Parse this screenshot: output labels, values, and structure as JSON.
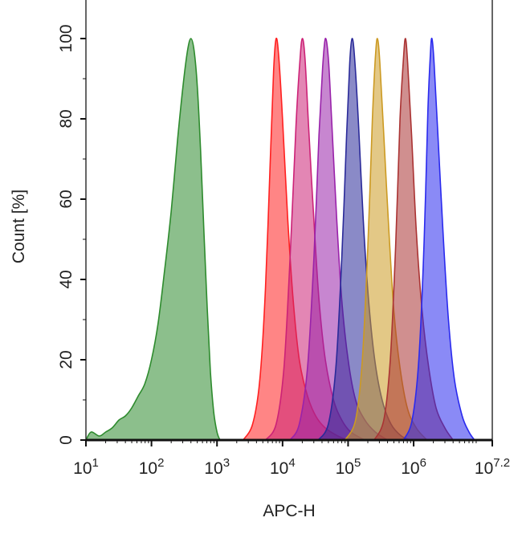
{
  "chart_data": {
    "type": "area",
    "title": "",
    "xlabel": "APC-H",
    "ylabel": "Count  [%]",
    "x_scale": "log10",
    "xlim": [
      10,
      15848932
    ],
    "ylim": [
      0,
      108
    ],
    "grid": false,
    "legend": "none",
    "x_ticks": [
      {
        "base": "10",
        "exp": "1"
      },
      {
        "base": "10",
        "exp": "2"
      },
      {
        "base": "10",
        "exp": "3"
      },
      {
        "base": "10",
        "exp": "4"
      },
      {
        "base": "10",
        "exp": "5"
      },
      {
        "base": "10",
        "exp": "6"
      },
      {
        "base": "10",
        "exp": "7.2"
      }
    ],
    "y_ticks": [
      "0",
      "20",
      "40",
      "60",
      "80",
      "100"
    ],
    "series": [
      {
        "color": "#2e8b2e",
        "peak_x": 400,
        "points": [
          [
            10,
            0
          ],
          [
            12,
            2
          ],
          [
            16,
            1
          ],
          [
            20,
            2
          ],
          [
            25,
            3
          ],
          [
            32,
            5
          ],
          [
            40,
            6
          ],
          [
            50,
            8
          ],
          [
            63,
            11
          ],
          [
            79,
            14
          ],
          [
            100,
            20
          ],
          [
            126,
            29
          ],
          [
            158,
            42
          ],
          [
            200,
            57
          ],
          [
            251,
            75
          ],
          [
            302,
            88
          ],
          [
            355,
            97
          ],
          [
            400,
            100
          ],
          [
            447,
            97
          ],
          [
            501,
            88
          ],
          [
            562,
            72
          ],
          [
            631,
            52
          ],
          [
            708,
            33
          ],
          [
            794,
            17
          ],
          [
            891,
            7
          ],
          [
            1000,
            2
          ],
          [
            1122,
            0
          ],
          [
            1259,
            0
          ]
        ]
      },
      {
        "color": "#ff2020",
        "peak_x": 8000,
        "points": [
          [
            2500,
            0
          ],
          [
            3500,
            4
          ],
          [
            4500,
            15
          ],
          [
            5500,
            38
          ],
          [
            6500,
            70
          ],
          [
            7300,
            92
          ],
          [
            8000,
            100
          ],
          [
            8800,
            95
          ],
          [
            10000,
            80
          ],
          [
            12000,
            55
          ],
          [
            14500,
            35
          ],
          [
            18000,
            20
          ],
          [
            24000,
            11
          ],
          [
            32000,
            6
          ],
          [
            45000,
            3
          ],
          [
            70000,
            1
          ],
          [
            100000,
            0
          ]
        ]
      },
      {
        "color": "#cc2277",
        "peak_x": 20000,
        "points": [
          [
            5500,
            0
          ],
          [
            8000,
            4
          ],
          [
            10500,
            18
          ],
          [
            13000,
            45
          ],
          [
            16000,
            78
          ],
          [
            18300,
            94
          ],
          [
            20000,
            100
          ],
          [
            22000,
            95
          ],
          [
            25000,
            78
          ],
          [
            30000,
            55
          ],
          [
            36000,
            35
          ],
          [
            45000,
            20
          ],
          [
            60000,
            10
          ],
          [
            80000,
            5
          ],
          [
            110000,
            2
          ],
          [
            180000,
            0
          ]
        ]
      },
      {
        "color": "#9922aa",
        "peak_x": 45000,
        "points": [
          [
            13000,
            0
          ],
          [
            18000,
            4
          ],
          [
            24000,
            18
          ],
          [
            30000,
            45
          ],
          [
            36000,
            76
          ],
          [
            41000,
            93
          ],
          [
            45000,
            100
          ],
          [
            50000,
            95
          ],
          [
            56000,
            80
          ],
          [
            67000,
            55
          ],
          [
            80000,
            35
          ],
          [
            100000,
            20
          ],
          [
            130000,
            10
          ],
          [
            180000,
            5
          ],
          [
            260000,
            2
          ],
          [
            400000,
            0
          ]
        ]
      },
      {
        "color": "#2a2a99",
        "peak_x": 115000,
        "points": [
          [
            35000,
            0
          ],
          [
            50000,
            4
          ],
          [
            65000,
            18
          ],
          [
            80000,
            45
          ],
          [
            95000,
            76
          ],
          [
            106000,
            94
          ],
          [
            115000,
            100
          ],
          [
            126000,
            95
          ],
          [
            145000,
            78
          ],
          [
            170000,
            55
          ],
          [
            205000,
            35
          ],
          [
            255000,
            20
          ],
          [
            330000,
            10
          ],
          [
            450000,
            4
          ],
          [
            650000,
            1
          ],
          [
            900000,
            0
          ]
        ]
      },
      {
        "color": "#cc9a22",
        "peak_x": 280000,
        "points": [
          [
            90000,
            0
          ],
          [
            130000,
            5
          ],
          [
            165000,
            20
          ],
          [
            200000,
            48
          ],
          [
            235000,
            80
          ],
          [
            260000,
            95
          ],
          [
            280000,
            100
          ],
          [
            305000,
            94
          ],
          [
            350000,
            76
          ],
          [
            420000,
            52
          ],
          [
            500000,
            32
          ],
          [
            620000,
            18
          ],
          [
            800000,
            8
          ],
          [
            1100000,
            3
          ],
          [
            1600000,
            0
          ]
        ]
      },
      {
        "color": "#aa3333",
        "peak_x": 750000,
        "points": [
          [
            250000,
            0
          ],
          [
            350000,
            5
          ],
          [
            440000,
            20
          ],
          [
            530000,
            48
          ],
          [
            620000,
            80
          ],
          [
            700000,
            95
          ],
          [
            750000,
            100
          ],
          [
            810000,
            94
          ],
          [
            930000,
            76
          ],
          [
            1100000,
            52
          ],
          [
            1350000,
            32
          ],
          [
            1700000,
            18
          ],
          [
            2200000,
            8
          ],
          [
            3000000,
            3
          ],
          [
            4000000,
            0
          ]
        ]
      },
      {
        "color": "#2a2aee",
        "peak_x": 1900000,
        "points": [
          [
            700000,
            0
          ],
          [
            950000,
            5
          ],
          [
            1200000,
            20
          ],
          [
            1450000,
            50
          ],
          [
            1650000,
            82
          ],
          [
            1800000,
            96
          ],
          [
            1900000,
            100
          ],
          [
            2050000,
            94
          ],
          [
            2350000,
            76
          ],
          [
            2800000,
            52
          ],
          [
            3400000,
            30
          ],
          [
            4200000,
            15
          ],
          [
            5500000,
            6
          ],
          [
            7000000,
            2
          ],
          [
            8500000,
            0
          ]
        ]
      }
    ]
  }
}
